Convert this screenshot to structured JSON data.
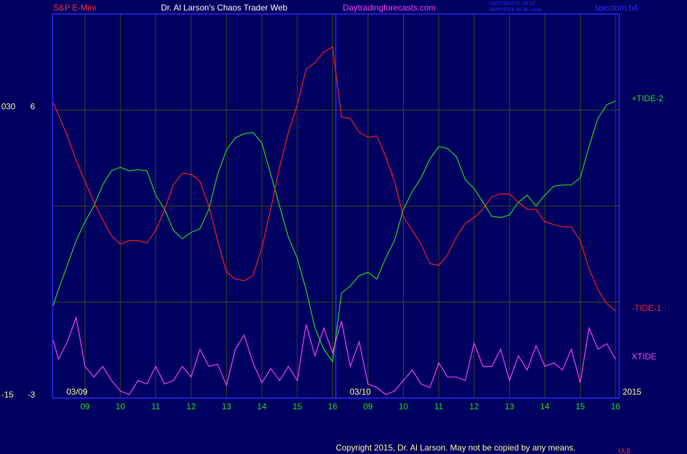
{
  "chart_data": {
    "type": "line",
    "instrument": "S&P E-Mini",
    "title": "Dr. Al Larson's Chaos Trader Web",
    "site": "Daytradingforecasts.com",
    "timestamps": [
      "03/07/2015 21:30 UT",
      "03/07/2015 16:30 Local"
    ],
    "file": "spectom.txt",
    "dates": [
      "03/09",
      "03/10",
      "2015"
    ],
    "copyright": "Copyright 2015, Dr. Al Larson. May not be copied by any means.",
    "footer_mark": "ULB",
    "xlim": [
      0.08,
      16.1
    ],
    "xticks": [
      {
        "value": 1,
        "label": "09"
      },
      {
        "value": 2,
        "label": "10"
      },
      {
        "value": 3,
        "label": "11"
      },
      {
        "value": 4,
        "label": "12"
      },
      {
        "value": 5,
        "label": "13"
      },
      {
        "value": 6,
        "label": "14"
      },
      {
        "value": 7,
        "label": "15"
      },
      {
        "value": 8,
        "label": "16"
      },
      {
        "value": 9,
        "label": "09"
      },
      {
        "value": 10,
        "label": "10"
      },
      {
        "value": 11,
        "label": "11"
      },
      {
        "value": 12,
        "label": "12"
      },
      {
        "value": 13,
        "label": "13"
      },
      {
        "value": 14,
        "label": "14"
      },
      {
        "value": 15,
        "label": "15"
      },
      {
        "value": 16,
        "label": "16"
      }
    ],
    "ylim": [
      -3,
      9
    ],
    "yticks": [
      6,
      -3
    ],
    "ygrid": [
      6,
      3,
      0
    ],
    "y2lim": [
      -15,
      45
    ],
    "y2ticks": [
      {
        "value": 30,
        "label": "030"
      },
      -15
    ],
    "grid": true,
    "x": [
      0.1,
      0.25,
      0.5,
      0.75,
      1.0,
      1.25,
      1.5,
      1.75,
      2.0,
      2.25,
      2.5,
      2.75,
      3.0,
      3.25,
      3.5,
      3.75,
      4.0,
      4.25,
      4.5,
      4.75,
      5.0,
      5.25,
      5.5,
      5.75,
      6.0,
      6.25,
      6.5,
      6.75,
      7.0,
      7.25,
      7.5,
      7.75,
      8.0,
      8.25,
      8.5,
      8.75,
      9.0,
      9.25,
      9.5,
      9.75,
      10.0,
      10.25,
      10.5,
      10.75,
      11.0,
      11.25,
      11.5,
      11.75,
      12.0,
      12.25,
      12.5,
      12.75,
      13.0,
      13.25,
      13.5,
      13.75,
      14.0,
      14.25,
      14.5,
      14.75,
      15.0,
      15.25,
      15.5,
      15.75,
      16.0
    ],
    "series": [
      {
        "name": "+TIDE-2",
        "color": "#20e020",
        "values": [
          -0.11,
          0.39,
          1.15,
          1.92,
          2.51,
          3.0,
          3.66,
          4.1,
          4.21,
          4.1,
          4.14,
          4.1,
          3.34,
          2.9,
          2.24,
          1.98,
          2.18,
          2.29,
          2.9,
          3.99,
          4.76,
          5.13,
          5.26,
          5.3,
          4.97,
          3.99,
          3.0,
          2.03,
          1.37,
          0.39,
          -0.81,
          -1.47,
          -1.86,
          0.28,
          0.5,
          0.83,
          0.93,
          0.72,
          1.37,
          1.92,
          2.9,
          3.45,
          3.88,
          4.47,
          4.86,
          4.8,
          4.54,
          3.82,
          3.55,
          3.12,
          2.68,
          2.64,
          2.72,
          3.12,
          3.34,
          3.0,
          3.34,
          3.62,
          3.66,
          3.66,
          3.88,
          4.86,
          5.74,
          6.17,
          6.28
        ]
      },
      {
        "name": "-TIDE-1",
        "color": "#ff2020",
        "values": [
          6.22,
          5.85,
          5.19,
          4.43,
          3.77,
          3.12,
          2.57,
          2.07,
          1.81,
          1.92,
          1.92,
          1.85,
          2.24,
          2.9,
          3.66,
          4.03,
          3.99,
          3.77,
          3.0,
          1.92,
          0.93,
          0.72,
          0.67,
          0.83,
          1.7,
          2.9,
          4.21,
          5.3,
          6.17,
          7.27,
          7.48,
          7.81,
          7.97,
          5.78,
          5.74,
          5.3,
          5.15,
          5.19,
          4.54,
          3.77,
          2.68,
          2.24,
          1.81,
          1.2,
          1.15,
          1.48,
          2.03,
          2.46,
          2.64,
          2.9,
          3.29,
          3.38,
          3.38,
          3.12,
          2.9,
          2.9,
          2.51,
          2.42,
          2.35,
          2.35,
          1.92,
          1.04,
          0.39,
          -0.05,
          -0.27
        ]
      },
      {
        "name": "XTIDE",
        "color": "#ff40ff",
        "values": [
          -1.18,
          -1.79,
          -1.24,
          -0.48,
          -2.01,
          -2.34,
          -2.01,
          -2.45,
          -2.78,
          -2.89,
          -2.45,
          -2.56,
          -2.01,
          -2.56,
          -2.45,
          -2.01,
          -2.34,
          -1.47,
          -2.01,
          -1.94,
          -2.6,
          -1.47,
          -1.03,
          -1.9,
          -2.52,
          -2.08,
          -2.45,
          -2.01,
          -2.45,
          -0.7,
          -1.68,
          -0.81,
          -1.58,
          -0.59,
          -2.01,
          -1.24,
          -2.56,
          -2.67,
          -2.89,
          -2.78,
          -2.45,
          -2.12,
          -2.56,
          -2.67,
          -1.9,
          -2.34,
          -2.34,
          -2.45,
          -1.28,
          -2.01,
          -2.01,
          -1.47,
          -2.45,
          -1.68,
          -2.12,
          -1.36,
          -2.01,
          -1.9,
          -2.12,
          -1.47,
          -2.52,
          -0.81,
          -1.47,
          -1.3,
          -1.79
        ]
      }
    ]
  }
}
